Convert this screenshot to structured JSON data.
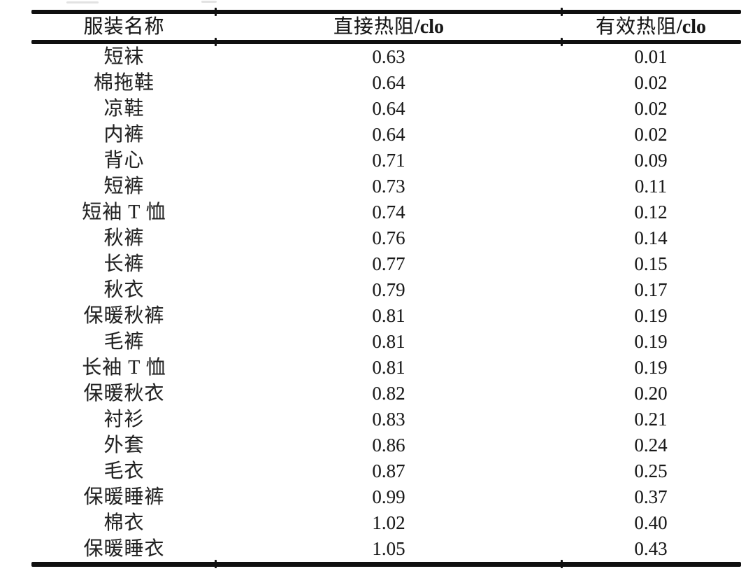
{
  "page": {
    "background_color": "#ffffff",
    "text_color": "#1d1d1d",
    "rule_color": "#101010"
  },
  "table": {
    "headers": [
      {
        "label": "服装名称",
        "unit": ""
      },
      {
        "label": "直接热阻",
        "unit": "/clo"
      },
      {
        "label": "有效热阻",
        "unit": "/clo"
      }
    ],
    "rows": [
      {
        "name": "短袜",
        "direct": "0.63",
        "effective": "0.01"
      },
      {
        "name": "棉拖鞋",
        "direct": "0.64",
        "effective": "0.02"
      },
      {
        "name": "凉鞋",
        "direct": "0.64",
        "effective": "0.02"
      },
      {
        "name": "内裤",
        "direct": "0.64",
        "effective": "0.02"
      },
      {
        "name": "背心",
        "direct": "0.71",
        "effective": "0.09"
      },
      {
        "name": "短裤",
        "direct": "0.73",
        "effective": "0.11"
      },
      {
        "name": "短袖 T 恤",
        "direct": "0.74",
        "effective": "0.12"
      },
      {
        "name": "秋裤",
        "direct": "0.76",
        "effective": "0.14"
      },
      {
        "name": "长裤",
        "direct": "0.77",
        "effective": "0.15"
      },
      {
        "name": "秋衣",
        "direct": "0.79",
        "effective": "0.17"
      },
      {
        "name": "保暖秋裤",
        "direct": "0.81",
        "effective": "0.19"
      },
      {
        "name": "毛裤",
        "direct": "0.81",
        "effective": "0.19"
      },
      {
        "name": "长袖 T 恤",
        "direct": "0.81",
        "effective": "0.19"
      },
      {
        "name": "保暖秋衣",
        "direct": "0.82",
        "effective": "0.20"
      },
      {
        "name": "衬衫",
        "direct": "0.83",
        "effective": "0.21"
      },
      {
        "name": "外套",
        "direct": "0.86",
        "effective": "0.24"
      },
      {
        "name": "毛衣",
        "direct": "0.87",
        "effective": "0.25"
      },
      {
        "name": "保暖睡裤",
        "direct": "0.99",
        "effective": "0.37"
      },
      {
        "name": "棉衣",
        "direct": "1.02",
        "effective": "0.40"
      },
      {
        "name": "保暖睡衣",
        "direct": "1.05",
        "effective": "0.43"
      }
    ]
  }
}
